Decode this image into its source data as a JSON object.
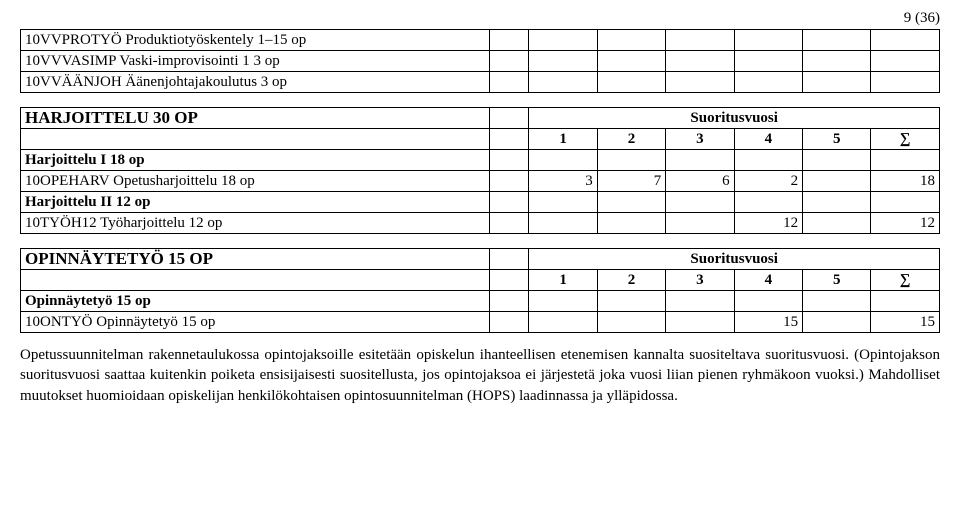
{
  "page_number": "9 (36)",
  "intro_rows": [
    "10VVPROTYÖ Produktiotyöskentely 1–15 op",
    "10VVVASIMP Vaski-improvisointi 1 3 op",
    "10VVÄÄNJOH Äänenjohtajakoulutus 3 op"
  ],
  "sections": [
    {
      "title": "HARJOITTELU 30 OP",
      "year_header": "Suoritusvuosi",
      "year_cols": [
        "1",
        "2",
        "3",
        "4",
        "5",
        "∑"
      ],
      "rows": [
        {
          "label": "Harjoittelu I 18 op",
          "bold": true,
          "cells": [
            "",
            "",
            "",
            "",
            "",
            ""
          ]
        },
        {
          "label": "10OPEHARV Opetusharjoittelu 18 op",
          "bold": false,
          "cells": [
            "3",
            "7",
            "6",
            "2",
            "",
            "18"
          ]
        },
        {
          "label": "Harjoittelu II 12 op",
          "bold": true,
          "cells": [
            "",
            "",
            "",
            "",
            "",
            ""
          ]
        },
        {
          "label": "10TYÖH12 Työharjoittelu 12 op",
          "bold": false,
          "cells": [
            "",
            "",
            "",
            "12",
            "",
            "12"
          ]
        }
      ]
    },
    {
      "title": "OPINNÄYTETYÖ 15 OP",
      "year_header": "Suoritusvuosi",
      "year_cols": [
        "1",
        "2",
        "3",
        "4",
        "5",
        "∑"
      ],
      "rows": [
        {
          "label": "Opinnäytetyö 15 op",
          "bold": true,
          "cells": [
            "",
            "",
            "",
            "",
            "",
            ""
          ]
        },
        {
          "label": "10ONTYÖ Opinnäytetyö 15 op",
          "bold": false,
          "cells": [
            "",
            "",
            "",
            "15",
            "",
            "15"
          ]
        }
      ]
    }
  ],
  "paragraph": "Opetussuunnitelman rakennetaulukossa opintojaksoille esitetään opiskelun ihanteellisen etenemisen kannalta suositeltava suoritusvuosi. (Opintojakson suoritusvuosi saattaa kuitenkin poiketa ensisijaisesti suositellusta, jos opintojaksoa ei järjestetä joka vuosi liian pienen ryhmäkoon vuoksi.) Mahdolliset muutokset huomioidaan opiskelijan henkilökohtaisen opintosuunnitelman (HOPS) laadinnassa ja ylläpidossa."
}
